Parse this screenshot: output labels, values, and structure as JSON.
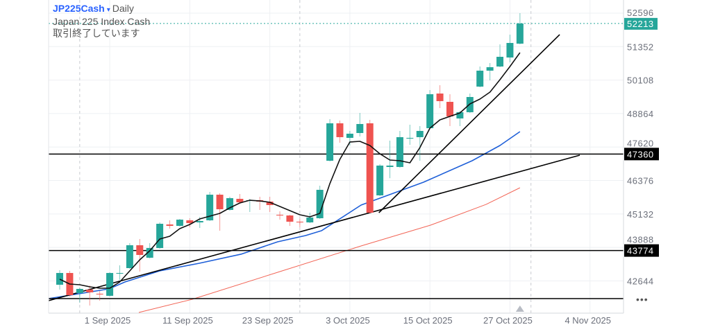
{
  "header": {
    "symbol": "JP225Cash",
    "caret": "▾",
    "timeframe": "Daily",
    "description": "Japan 225 Index Cash",
    "status": "取引終了しています"
  },
  "more_menu": "•••",
  "chart_data": {
    "type": "candlestick",
    "title": "JP225Cash Daily",
    "colors": {
      "up": "#26a69a",
      "down": "#ef5350",
      "ma_fast": "#111111",
      "ma_mid": "#1e5fd8",
      "ma_slow": "#f26455",
      "last_price": "#26a69a",
      "hline": "#000000"
    },
    "y_ticks": [
      52596,
      51352,
      50108,
      48864,
      47620,
      46376,
      45132,
      43888,
      42644
    ],
    "x_ticks": [
      {
        "index": 5,
        "label": "1 Sep 2025"
      },
      {
        "index": 13,
        "label": "11 Sep 2025"
      },
      {
        "index": 21,
        "label": "23 Sep 2025"
      },
      {
        "index": 29,
        "label": "3 Oct 2025"
      },
      {
        "index": 37,
        "label": "15 Oct 2025"
      },
      {
        "index": 45,
        "label": "27 Oct 2025"
      },
      {
        "index": 53,
        "label": "4 Nov 2025"
      }
    ],
    "separators": [
      2,
      24,
      47.1
    ],
    "last_price": {
      "value": 52213,
      "label": "52213"
    },
    "horizontal_lines": [
      {
        "value": 47360,
        "label": "47360"
      },
      {
        "value": 43774,
        "label": "43774"
      },
      {
        "value": 41987,
        "label": ""
      }
    ],
    "trendlines": [
      {
        "from": [
          -1.11,
          41910
        ],
        "to": [
          51.98,
          47317
        ]
      },
      {
        "from": [
          31.9,
          45180
        ],
        "to": [
          49.97,
          51798
        ]
      }
    ],
    "candles": [
      [
        42502,
        43042,
        42321,
        42939
      ],
      [
        42939,
        43017,
        42064,
        42115
      ],
      [
        42193,
        42399,
        41832,
        42347
      ],
      [
        42321,
        42476,
        41729,
        42218
      ],
      [
        42167,
        42270,
        41909,
        42141
      ],
      [
        42090,
        42965,
        42064,
        42939
      ],
      [
        42914,
        43223,
        42682,
        42939
      ],
      [
        43120,
        44047,
        43094,
        43970
      ],
      [
        43970,
        44201,
        42991,
        43609
      ],
      [
        43506,
        44047,
        43480,
        43867
      ],
      [
        43867,
        44819,
        43841,
        44768
      ],
      [
        44742,
        44896,
        44588,
        44690
      ],
      [
        44690,
        44948,
        44665,
        44922
      ],
      [
        44896,
        44974,
        44639,
        44793
      ],
      [
        44819,
        45025,
        44613,
        44871
      ],
      [
        44896,
        45952,
        44871,
        45849
      ],
      [
        45849,
        45901,
        44510,
        45308
      ],
      [
        45283,
        45772,
        45257,
        45720
      ],
      [
        45695,
        45875,
        45540,
        45566
      ],
      [
        45617,
        45695,
        45206,
        45643
      ],
      [
        45643,
        45772,
        45283,
        45592
      ],
      [
        45592,
        45772,
        45206,
        45463
      ],
      [
        45102,
        45231,
        44922,
        45077
      ],
      [
        45077,
        45102,
        44690,
        44845
      ],
      [
        44845,
        44948,
        44639,
        44819
      ],
      [
        44819,
        45180,
        44793,
        45000
      ],
      [
        44974,
        46184,
        44948,
        46030
      ],
      [
        47111,
        48656,
        47086,
        48502
      ],
      [
        48502,
        48605,
        47781,
        47987
      ],
      [
        47961,
        48219,
        47677,
        48116
      ],
      [
        48141,
        48888,
        48012,
        48476
      ],
      [
        48502,
        48630,
        45154,
        45180
      ],
      [
        45824,
        46982,
        45798,
        46931
      ],
      [
        46879,
        47858,
        46462,
        46931
      ],
      [
        46879,
        48219,
        46853,
        47987
      ],
      [
        47935,
        48450,
        47703,
        47961
      ],
      [
        47987,
        48399,
        47111,
        48219
      ],
      [
        48321,
        49738,
        48296,
        49583
      ],
      [
        49609,
        49918,
        49068,
        49326
      ],
      [
        49300,
        49583,
        48399,
        48759
      ],
      [
        48682,
        48965,
        48399,
        48914
      ],
      [
        48914,
        49609,
        48888,
        49480
      ],
      [
        49866,
        50613,
        49841,
        50459
      ],
      [
        50459,
        50742,
        50098,
        50588
      ],
      [
        50613,
        51437,
        50588,
        50974
      ],
      [
        50948,
        51798,
        50768,
        51489
      ],
      [
        51463,
        52596,
        51437,
        52213
      ]
    ],
    "ma_fast": [
      42708,
      42528,
      42502,
      42425,
      42373,
      42373,
      42605,
      43017,
      43429,
      43764,
      44201,
      44304,
      44588,
      44742,
      44948,
      45051,
      45154,
      45360,
      45540,
      45643,
      45617,
      45566,
      45412,
      45257,
      45102,
      45025,
      45154,
      46261,
      47163,
      47807,
      47832,
      47678,
      47369,
      47137,
      47111,
      47034,
      47600,
      48321,
      48630,
      48759,
      48888,
      49223,
      49403,
      49660,
      50124,
      50613,
      51128
    ],
    "ma_mid": [
      [
        -1.11,
        41987
      ],
      [
        4.93,
        42347
      ],
      [
        6.52,
        42605
      ],
      [
        9.99,
        43017
      ],
      [
        13.95,
        43300
      ],
      [
        18.11,
        43636
      ],
      [
        21.79,
        44098
      ],
      [
        24.57,
        44330
      ],
      [
        26.16,
        44510
      ],
      [
        30.12,
        45463
      ],
      [
        36.36,
        46313
      ],
      [
        41.22,
        47111
      ],
      [
        44.0,
        47678
      ],
      [
        46,
        48193
      ]
    ],
    "ma_slow": [
      [
        7.91,
        41472
      ],
      [
        13.25,
        41961
      ],
      [
        21.79,
        42965
      ],
      [
        30.12,
        43944
      ],
      [
        37.06,
        44716
      ],
      [
        42.61,
        45488
      ],
      [
        46,
        46107
      ]
    ]
  }
}
